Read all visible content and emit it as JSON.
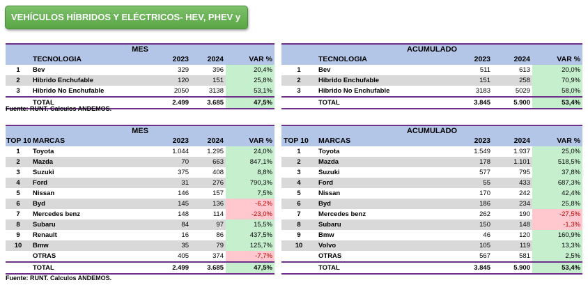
{
  "banner": "VEHÍCULOS HÍBRIDOS Y ELÉCTRICOS- HEV, PHEV y BEV",
  "tech_mes": {
    "title": "MES",
    "col_name": "TECNOLOGIA",
    "col_y1": "2023",
    "col_y2": "2024",
    "col_var": "VAR %",
    "rows": [
      {
        "idx": "1",
        "name": "Bev",
        "y1": "329",
        "y2": "396",
        "var": "20,4%"
      },
      {
        "idx": "2",
        "name": "Hibrido Enchufable",
        "y1": "120",
        "y2": "151",
        "var": "25,8%"
      },
      {
        "idx": "3",
        "name": "Hibrido No Enchufable",
        "y1": "2050",
        "y2": "3138",
        "var": "53,1%"
      }
    ],
    "total": {
      "label": "TOTAL",
      "y1": "2.499",
      "y2": "3.685",
      "var": "47,5%"
    }
  },
  "tech_acum": {
    "title": "ACUMULADO",
    "col_name": "TECNOLOGIA",
    "col_y1": "2023",
    "col_y2": "2024",
    "col_var": "VAR %",
    "rows": [
      {
        "idx": "1",
        "name": "Bev",
        "y1": "511",
        "y2": "613",
        "var": "20,0%"
      },
      {
        "idx": "2",
        "name": "Hibrido Enchufable",
        "y1": "151",
        "y2": "258",
        "var": "70,9%"
      },
      {
        "idx": "3",
        "name": "Hibrido No Enchufable",
        "y1": "3183",
        "y2": "5029",
        "var": "58,0%"
      }
    ],
    "total": {
      "label": "TOTAL",
      "y1": "3.845",
      "y2": "5.900",
      "var": "53,4%"
    }
  },
  "source1": "Fuente: RUNT. Calculos ANDEMOS.",
  "brand_mes": {
    "title": "MES",
    "col_top": "TOP 10",
    "col_name": "MARCAS",
    "col_y1": "2023",
    "col_y2": "2024",
    "col_var": "VAR %",
    "rows": [
      {
        "idx": "1",
        "name": "Toyota",
        "y1": "1.044",
        "y2": "1.295",
        "var": "24,0%"
      },
      {
        "idx": "2",
        "name": "Mazda",
        "y1": "70",
        "y2": "663",
        "var": "847,1%"
      },
      {
        "idx": "3",
        "name": "Suzuki",
        "y1": "375",
        "y2": "408",
        "var": "8,8%"
      },
      {
        "idx": "4",
        "name": "Ford",
        "y1": "31",
        "y2": "276",
        "var": "790,3%"
      },
      {
        "idx": "5",
        "name": "Nissan",
        "y1": "146",
        "y2": "157",
        "var": "7,5%"
      },
      {
        "idx": "6",
        "name": "Byd",
        "y1": "145",
        "y2": "136",
        "var": "-6,2%"
      },
      {
        "idx": "7",
        "name": "Mercedes benz",
        "y1": "148",
        "y2": "114",
        "var": "-23,0%"
      },
      {
        "idx": "8",
        "name": "Subaru",
        "y1": "84",
        "y2": "97",
        "var": "15,5%"
      },
      {
        "idx": "9",
        "name": "Renault",
        "y1": "16",
        "y2": "86",
        "var": "437,5%"
      },
      {
        "idx": "10",
        "name": "Bmw",
        "y1": "35",
        "y2": "79",
        "var": "125,7%"
      },
      {
        "idx": "",
        "name": "OTRAS",
        "y1": "405",
        "y2": "374",
        "var": "-7,7%"
      }
    ],
    "total": {
      "label": "TOTAL",
      "y1": "2.499",
      "y2": "3.685",
      "var": "47,5%"
    }
  },
  "brand_acum": {
    "title": "ACUMULADO",
    "col_top": "TOP 10",
    "col_name": "MARCAS",
    "col_y1": "2023",
    "col_y2": "2024",
    "col_var": "VAR %",
    "rows": [
      {
        "idx": "1",
        "name": "Toyota",
        "y1": "1.549",
        "y2": "1.937",
        "var": "25,0%"
      },
      {
        "idx": "2",
        "name": "Mazda",
        "y1": "178",
        "y2": "1.101",
        "var": "518,5%"
      },
      {
        "idx": "3",
        "name": "Suzuki",
        "y1": "577",
        "y2": "795",
        "var": "37,8%"
      },
      {
        "idx": "4",
        "name": "Ford",
        "y1": "55",
        "y2": "433",
        "var": "687,3%"
      },
      {
        "idx": "5",
        "name": "Nissan",
        "y1": "170",
        "y2": "242",
        "var": "42,4%"
      },
      {
        "idx": "6",
        "name": "Byd",
        "y1": "186",
        "y2": "234",
        "var": "25,8%"
      },
      {
        "idx": "7",
        "name": "Mercedes benz",
        "y1": "262",
        "y2": "190",
        "var": "-27,5%"
      },
      {
        "idx": "8",
        "name": "Subaru",
        "y1": "150",
        "y2": "148",
        "var": "-1,3%"
      },
      {
        "idx": "9",
        "name": "Bmw",
        "y1": "46",
        "y2": "120",
        "var": "160,9%"
      },
      {
        "idx": "10",
        "name": "Volvo",
        "y1": "105",
        "y2": "119",
        "var": "13,3%"
      },
      {
        "idx": "",
        "name": "OTRAS",
        "y1": "567",
        "y2": "581",
        "var": "2,5%"
      }
    ],
    "total": {
      "label": "TOTAL",
      "y1": "3.845",
      "y2": "5.900",
      "var": "53,4%"
    }
  },
  "source2": "Fuente: RUNT. Calculos ANDEMOS.",
  "colors": {
    "header_bg": "#b4c6e7",
    "border": "#6d2f8a",
    "positive": "#c6efce",
    "negative": "#ffc7ce",
    "stripe": "#d9d9d9",
    "banner": "#5aa645"
  }
}
